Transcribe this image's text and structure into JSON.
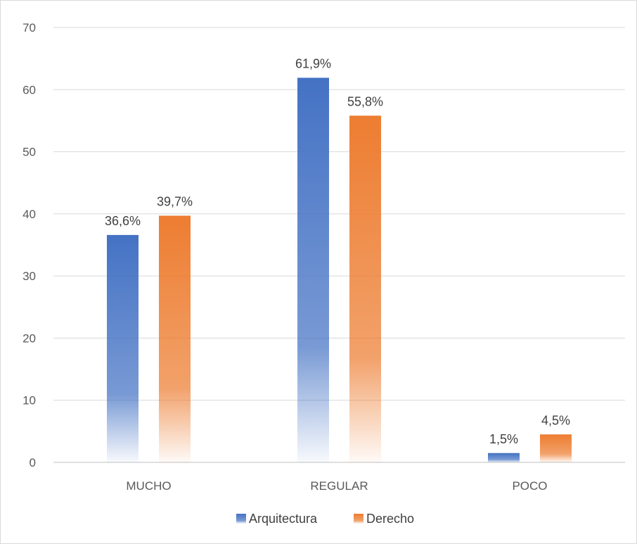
{
  "chart_data": {
    "type": "bar",
    "categories": [
      "MUCHO",
      "REGULAR",
      "POCO"
    ],
    "series": [
      {
        "name": "Arquitectura",
        "values": [
          36.6,
          61.9,
          1.5
        ],
        "labels": [
          "36,6%",
          "61,9%",
          "1,5%"
        ],
        "color": "#4472C4"
      },
      {
        "name": "Derecho",
        "values": [
          39.7,
          55.8,
          4.5
        ],
        "labels": [
          "39,7%",
          "55,8%",
          "4,5%"
        ],
        "color": "#ED7D31"
      }
    ],
    "ylim": [
      0,
      70
    ],
    "yticks": [
      0,
      10,
      20,
      30,
      40,
      50,
      60,
      70
    ],
    "grid": true,
    "legend": "bottom",
    "title": "",
    "xlabel": "",
    "ylabel": ""
  }
}
